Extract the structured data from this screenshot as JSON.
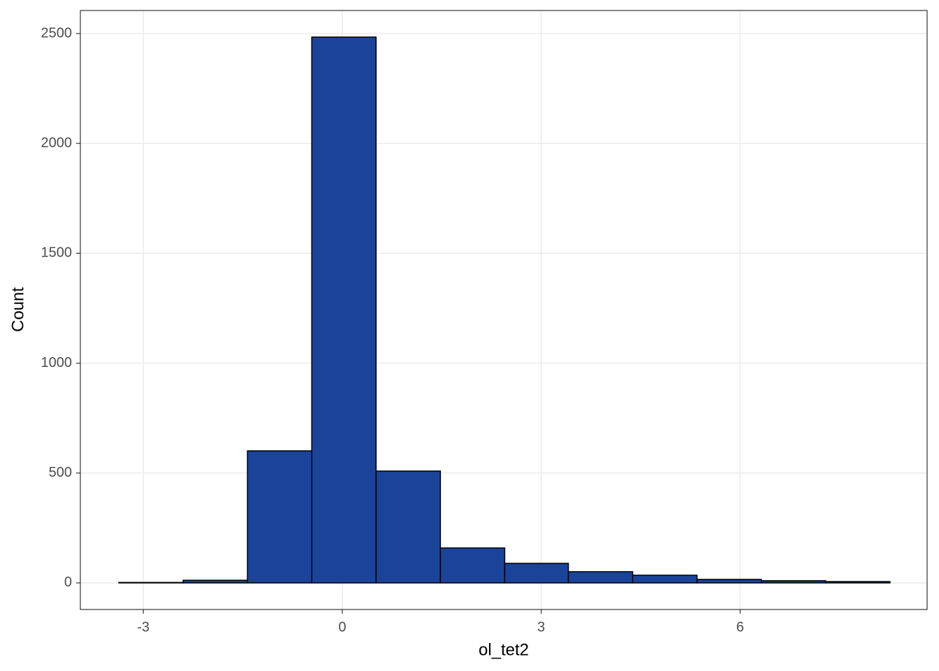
{
  "chart_data": {
    "type": "histogram",
    "x_label": "ol_tet2",
    "y_label": "Count",
    "bins": [
      -3.37,
      -2.4,
      -1.43,
      -0.46,
      0.51,
      1.48,
      2.45,
      3.41,
      4.38,
      5.35,
      6.32,
      7.29,
      8.26
    ],
    "values": [
      2,
      12,
      601,
      2484,
      509,
      159,
      89,
      51,
      35,
      16,
      10,
      6
    ],
    "color": "#1a4399",
    "xlim": [
      -3.95,
      8.82
    ],
    "xticks": [
      -3,
      0,
      3,
      6
    ],
    "ylim": [
      -121,
      2605
    ],
    "yticks": [
      0,
      500,
      1000,
      1500,
      2000,
      2500
    ],
    "grid": true
  }
}
